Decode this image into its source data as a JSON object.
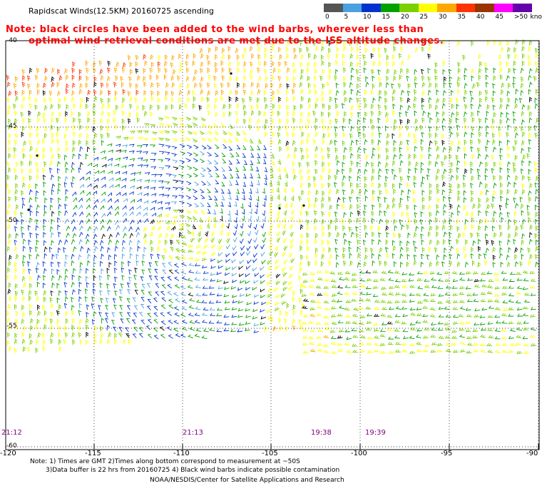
{
  "header": {
    "title": "Rapidscat Winds(12.5KM) 20160725 ascending"
  },
  "note": {
    "line1": "Note: black circles have been added to the wind barbs, wherever less than",
    "line2": "optimal wind retrieval conditions are met due to the ISS altitude changes."
  },
  "legend": {
    "unit": "knots",
    "labels": [
      "0",
      "5",
      "10",
      "15",
      "20",
      "25",
      "30",
      "35",
      "40",
      "45",
      ">50"
    ],
    "colors": [
      "#555555",
      "#4aa0e0",
      "#0033cc",
      "#00a000",
      "#7ad000",
      "#ffff00",
      "#ffa800",
      "#ff3300",
      "#993300",
      "#ff00ff",
      "#6600aa"
    ]
  },
  "axes": {
    "x_ticks": [
      "-120",
      "-115",
      "-110",
      "-105",
      "-100",
      "-95",
      "-90"
    ],
    "y_ticks": [
      "-40",
      "-45",
      "-50",
      "-55",
      "-60"
    ]
  },
  "pass_times": [
    "21:12",
    "21:13",
    "19:38",
    "19:39"
  ],
  "footer": {
    "line1": "Note: 1) Times are GMT 2)Times along bottom correspond to measurement at ~50S",
    "line2": "3)Data buffer is 22 hrs from 20160725 4) Black wind barbs indicate possible contamination",
    "line3": "NOAA/NESDIS/Center for Satellite Applications and Research"
  }
}
